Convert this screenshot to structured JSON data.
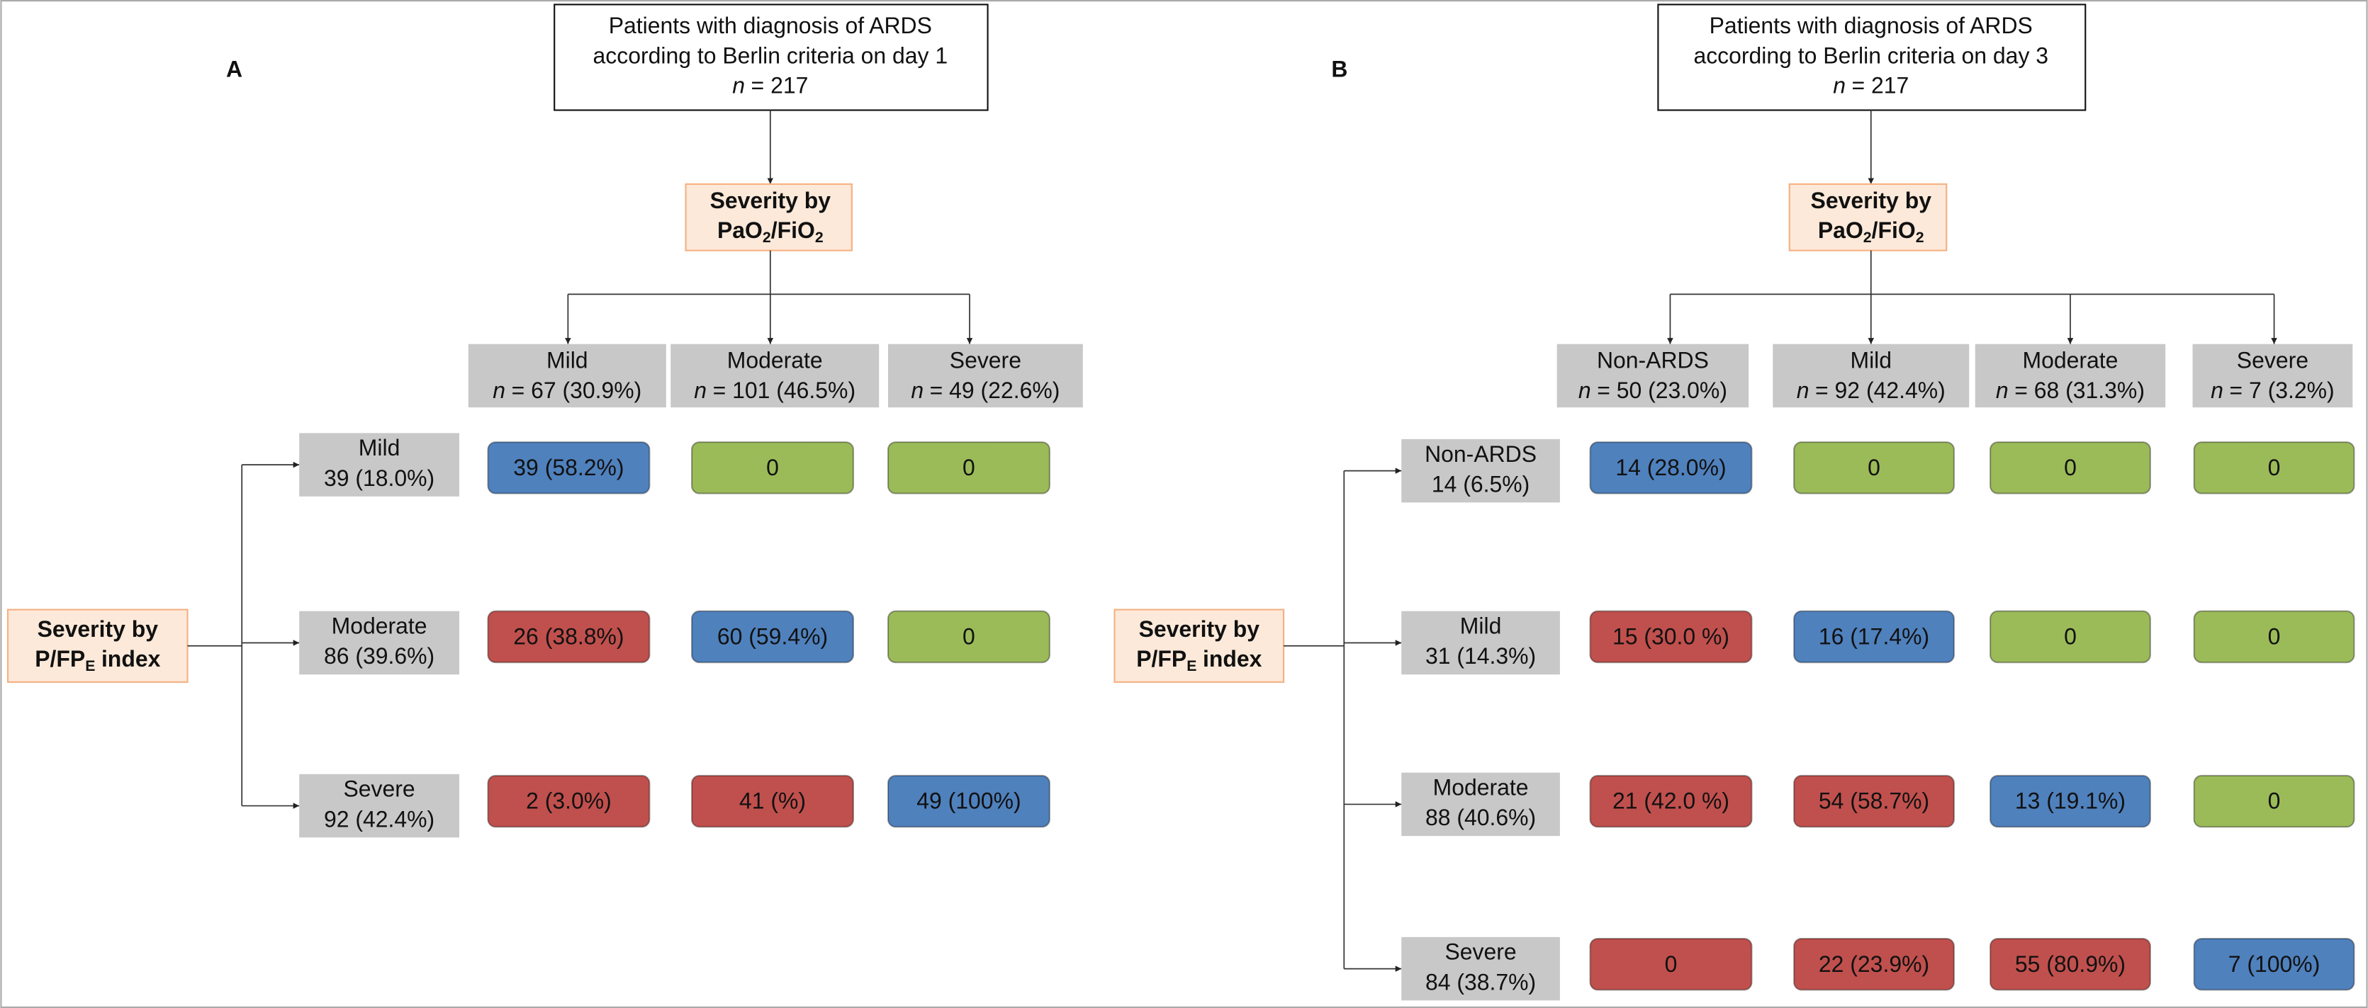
{
  "panels": [
    {
      "label": "A",
      "top_box": {
        "lines": [
          "Patients with diagnosis of ARDS",
          "according to Berlin criteria on day 1"
        ],
        "n_symbol": "n",
        "n_text": "= 217"
      },
      "pao_box": {
        "line1": "Severity by",
        "line2": [
          "PaO",
          "2",
          "/FiO",
          "2"
        ]
      },
      "pfp_box": {
        "line1": "Severity by",
        "line2": [
          "P/FP",
          "E",
          "index"
        ]
      },
      "columns": [
        {
          "name": "Mild",
          "n_symbol": "n",
          "n_text": "= 67 (30.9%)"
        },
        {
          "name": "Moderate",
          "n_symbol": "n",
          "n_text": "= 101 (46.5%)"
        },
        {
          "name": "Severe",
          "n_symbol": "n",
          "n_text": "= 49 (22.6%)"
        }
      ],
      "rows": [
        {
          "name": "Mild",
          "count": "39 (18.0%)",
          "cells": [
            {
              "text": "39 (58.2%)",
              "color": "#4f81bd"
            },
            {
              "text": "0",
              "color": "#9bbb59"
            },
            {
              "text": "0",
              "color": "#9bbb59"
            }
          ]
        },
        {
          "name": "Moderate",
          "count": "86 (39.6%)",
          "cells": [
            {
              "text": "26 (38.8%)",
              "color": "#c0504d"
            },
            {
              "text": "60 (59.4%)",
              "color": "#4f81bd"
            },
            {
              "text": "0",
              "color": "#9bbb59"
            }
          ]
        },
        {
          "name": "Severe",
          "count": "92 (42.4%)",
          "cells": [
            {
              "text": "2 (3.0%)",
              "color": "#c0504d"
            },
            {
              "text": "41 (%)",
              "color": "#c0504d"
            },
            {
              "text": "49 (100%)",
              "color": "#4f81bd"
            }
          ]
        }
      ]
    },
    {
      "label": "B",
      "top_box": {
        "lines": [
          "Patients with diagnosis of ARDS",
          "according to Berlin criteria on day 3"
        ],
        "n_symbol": "n",
        "n_text": "= 217"
      },
      "pao_box": {
        "line1": "Severity by",
        "line2": [
          "PaO",
          "2",
          "/FiO",
          "2"
        ]
      },
      "pfp_box": {
        "line1": "Severity by",
        "line2": [
          "P/FP",
          "E",
          "index"
        ]
      },
      "columns": [
        {
          "name": "Non-ARDS",
          "n_symbol": "n",
          "n_text": "= 50 (23.0%)"
        },
        {
          "name": "Mild",
          "n_symbol": "n",
          "n_text": "= 92 (42.4%)"
        },
        {
          "name": "Moderate",
          "n_symbol": "n",
          "n_text": "= 68 (31.3%)"
        },
        {
          "name": "Severe",
          "n_symbol": "n",
          "n_text": "= 7 (3.2%)"
        }
      ],
      "rows": [
        {
          "name": "Non-ARDS",
          "count": "14 (6.5%)",
          "cells": [
            {
              "text": "14 (28.0%)",
              "color": "#4f81bd"
            },
            {
              "text": "0",
              "color": "#9bbb59"
            },
            {
              "text": "0",
              "color": "#9bbb59"
            },
            {
              "text": "0",
              "color": "#9bbb59"
            }
          ]
        },
        {
          "name": "Mild",
          "count": "31 (14.3%)",
          "cells": [
            {
              "text": "15 (30.0 %)",
              "color": "#c0504d"
            },
            {
              "text": "16 (17.4%)",
              "color": "#4f81bd"
            },
            {
              "text": "0",
              "color": "#9bbb59"
            },
            {
              "text": "0",
              "color": "#9bbb59"
            }
          ]
        },
        {
          "name": "Moderate",
          "count": "88 (40.6%)",
          "cells": [
            {
              "text": "21 (42.0 %)",
              "color": "#c0504d"
            },
            {
              "text": "54 (58.7%)",
              "color": "#c0504d"
            },
            {
              "text": "13 (19.1%)",
              "color": "#4f81bd"
            },
            {
              "text": "0",
              "color": "#9bbb59"
            }
          ]
        },
        {
          "name": "Severe",
          "count": "84 (38.7%)",
          "cells": [
            {
              "text": "0",
              "color": "#c0504d"
            },
            {
              "text": "22 (23.9%)",
              "color": "#c0504d"
            },
            {
              "text": "55 (80.9%)",
              "color": "#c0504d"
            },
            {
              "text": "7 (100%)",
              "color": "#4f81bd"
            }
          ]
        }
      ]
    }
  ]
}
